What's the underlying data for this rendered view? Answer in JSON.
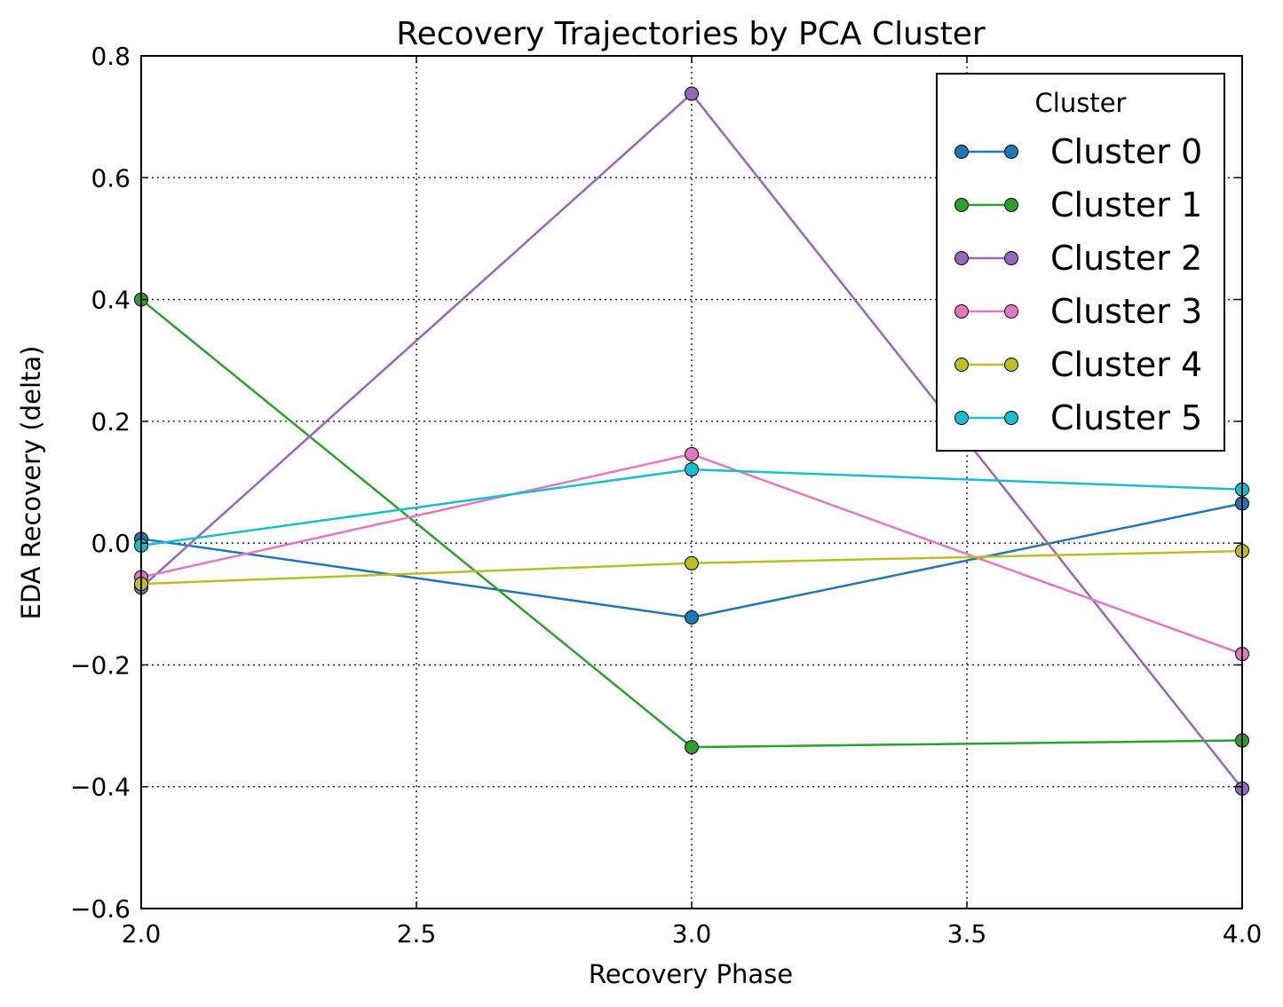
{
  "chart_data": {
    "type": "line",
    "title": "Recovery Trajectories by PCA Cluster",
    "xlabel": "Recovery Phase",
    "ylabel": "EDA Recovery (delta)",
    "xlim": [
      2.0,
      4.0
    ],
    "ylim": [
      -0.6,
      0.8
    ],
    "xticks": [
      2.0,
      2.5,
      3.0,
      3.5,
      4.0
    ],
    "xtick_labels": [
      "2.0",
      "2.5",
      "3.0",
      "3.5",
      "4.0"
    ],
    "yticks": [
      -0.6,
      -0.4,
      -0.2,
      0.0,
      0.2,
      0.4,
      0.6,
      0.8
    ],
    "ytick_labels": [
      "−0.6",
      "−0.4",
      "−0.2",
      "0.0",
      "0.2",
      "0.4",
      "0.6",
      "0.8"
    ],
    "grid": true,
    "legend": {
      "title": "Cluster",
      "placement": "top-right"
    },
    "x": [
      2,
      3,
      4
    ],
    "series": [
      {
        "name": "Cluster 0",
        "color": "#1f77b4",
        "values": [
          0.007,
          -0.122,
          0.065
        ]
      },
      {
        "name": "Cluster 1",
        "color": "#2ca02c",
        "values": [
          0.4,
          -0.335,
          -0.324
        ]
      },
      {
        "name": "Cluster 2",
        "color": "#9467bd",
        "values": [
          -0.073,
          0.738,
          -0.403
        ]
      },
      {
        "name": "Cluster 3",
        "color": "#e377c2",
        "values": [
          -0.056,
          0.146,
          -0.182
        ]
      },
      {
        "name": "Cluster 4",
        "color": "#bcbd22",
        "values": [
          -0.067,
          -0.033,
          -0.013
        ]
      },
      {
        "name": "Cluster 5",
        "color": "#17becf",
        "values": [
          -0.004,
          0.121,
          0.088
        ]
      }
    ]
  }
}
